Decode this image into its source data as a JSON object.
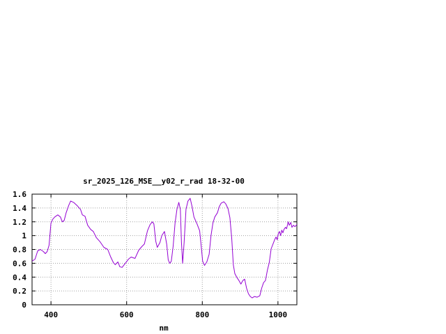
{
  "chart_data": {
    "type": "line",
    "title": "sr_2025_126_MSE__y02_r_rad 18-32-00",
    "xlabel": "nm",
    "ylabel": "",
    "xlim": [
      350,
      1050
    ],
    "ylim": [
      0,
      1.6
    ],
    "xticks": [
      400,
      600,
      800,
      1000
    ],
    "xtick_labels": [
      "400",
      "600",
      "800",
      "1000"
    ],
    "yticks": [
      0,
      0.2,
      0.4,
      0.6,
      0.8,
      1,
      1.2,
      1.4,
      1.6
    ],
    "ytick_labels": [
      "0",
      "0.2",
      "0.4",
      "0.6",
      "0.8",
      "1",
      "1.2",
      "1.4",
      "1.6"
    ],
    "grid": true,
    "legend": "none",
    "series": [
      {
        "color": "#9400d3",
        "points": [
          [
            350,
            0.63
          ],
          [
            358,
            0.66
          ],
          [
            365,
            0.78
          ],
          [
            372,
            0.8
          ],
          [
            380,
            0.77
          ],
          [
            385,
            0.74
          ],
          [
            390,
            0.77
          ],
          [
            395,
            0.86
          ],
          [
            400,
            1.18
          ],
          [
            405,
            1.24
          ],
          [
            410,
            1.27
          ],
          [
            418,
            1.3
          ],
          [
            425,
            1.27
          ],
          [
            430,
            1.2
          ],
          [
            435,
            1.22
          ],
          [
            440,
            1.33
          ],
          [
            447,
            1.44
          ],
          [
            452,
            1.5
          ],
          [
            460,
            1.48
          ],
          [
            470,
            1.43
          ],
          [
            478,
            1.38
          ],
          [
            483,
            1.3
          ],
          [
            490,
            1.28
          ],
          [
            497,
            1.15
          ],
          [
            505,
            1.09
          ],
          [
            512,
            1.06
          ],
          [
            520,
            0.97
          ],
          [
            530,
            0.91
          ],
          [
            540,
            0.83
          ],
          [
            550,
            0.8
          ],
          [
            558,
            0.69
          ],
          [
            565,
            0.61
          ],
          [
            570,
            0.58
          ],
          [
            577,
            0.62
          ],
          [
            582,
            0.55
          ],
          [
            588,
            0.54
          ],
          [
            595,
            0.59
          ],
          [
            605,
            0.66
          ],
          [
            612,
            0.69
          ],
          [
            622,
            0.67
          ],
          [
            632,
            0.79
          ],
          [
            640,
            0.84
          ],
          [
            647,
            0.88
          ],
          [
            655,
            1.07
          ],
          [
            662,
            1.16
          ],
          [
            668,
            1.2
          ],
          [
            672,
            1.17
          ],
          [
            677,
            0.92
          ],
          [
            681,
            0.83
          ],
          [
            688,
            0.9
          ],
          [
            693,
            1.0
          ],
          [
            700,
            1.06
          ],
          [
            706,
            0.87
          ],
          [
            710,
            0.65
          ],
          [
            714,
            0.6
          ],
          [
            718,
            0.63
          ],
          [
            723,
            0.85
          ],
          [
            728,
            1.18
          ],
          [
            733,
            1.38
          ],
          [
            738,
            1.48
          ],
          [
            742,
            1.38
          ],
          [
            745,
            0.9
          ],
          [
            748,
            0.6
          ],
          [
            752,
            0.9
          ],
          [
            757,
            1.38
          ],
          [
            762,
            1.5
          ],
          [
            768,
            1.54
          ],
          [
            773,
            1.42
          ],
          [
            778,
            1.27
          ],
          [
            786,
            1.17
          ],
          [
            793,
            1.07
          ],
          [
            797,
            0.85
          ],
          [
            801,
            0.63
          ],
          [
            806,
            0.57
          ],
          [
            812,
            0.62
          ],
          [
            818,
            0.73
          ],
          [
            823,
            1.0
          ],
          [
            828,
            1.18
          ],
          [
            833,
            1.27
          ],
          [
            840,
            1.33
          ],
          [
            845,
            1.42
          ],
          [
            850,
            1.47
          ],
          [
            857,
            1.49
          ],
          [
            862,
            1.46
          ],
          [
            868,
            1.39
          ],
          [
            873,
            1.26
          ],
          [
            878,
            0.95
          ],
          [
            882,
            0.58
          ],
          [
            886,
            0.45
          ],
          [
            892,
            0.39
          ],
          [
            897,
            0.35
          ],
          [
            902,
            0.3
          ],
          [
            907,
            0.35
          ],
          [
            912,
            0.37
          ],
          [
            917,
            0.24
          ],
          [
            922,
            0.16
          ],
          [
            927,
            0.12
          ],
          [
            932,
            0.1
          ],
          [
            938,
            0.12
          ],
          [
            945,
            0.11
          ],
          [
            952,
            0.13
          ],
          [
            957,
            0.24
          ],
          [
            962,
            0.32
          ],
          [
            967,
            0.35
          ],
          [
            972,
            0.5
          ],
          [
            977,
            0.61
          ],
          [
            982,
            0.81
          ],
          [
            987,
            0.88
          ],
          [
            992,
            0.95
          ],
          [
            995,
            0.98
          ],
          [
            998,
            0.94
          ],
          [
            1001,
            1.03
          ],
          [
            1004,
            1.06
          ],
          [
            1007,
            1.0
          ],
          [
            1010,
            1.08
          ],
          [
            1013,
            1.04
          ],
          [
            1016,
            1.09
          ],
          [
            1020,
            1.12
          ],
          [
            1023,
            1.1
          ],
          [
            1027,
            1.2
          ],
          [
            1030,
            1.15
          ],
          [
            1034,
            1.19
          ],
          [
            1037,
            1.12
          ],
          [
            1041,
            1.15
          ],
          [
            1045,
            1.13
          ],
          [
            1050,
            1.16
          ]
        ]
      }
    ]
  }
}
